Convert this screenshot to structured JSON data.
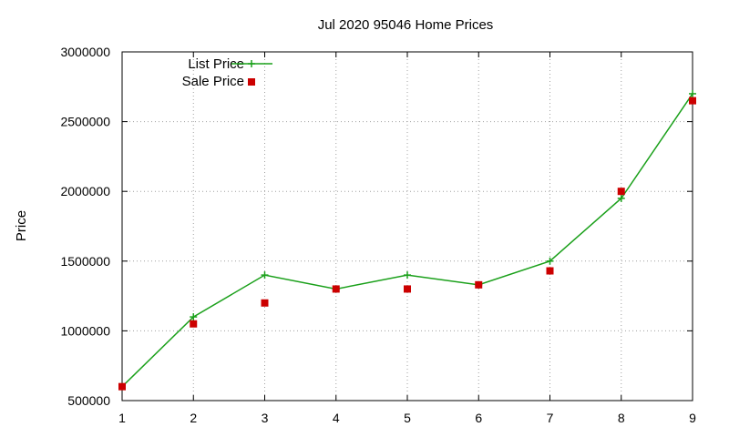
{
  "chart_data": {
    "type": "line",
    "title": "Jul 2020 95046 Home Prices",
    "xlabel": "",
    "ylabel": "Price",
    "x": [
      1,
      2,
      3,
      4,
      5,
      6,
      7,
      8,
      9
    ],
    "xlim": [
      1,
      9
    ],
    "ylim": [
      500000,
      3000000
    ],
    "x_ticks": [
      "1",
      "2",
      "3",
      "4",
      "5",
      "6",
      "7",
      "8",
      "9"
    ],
    "y_ticks": [
      {
        "value": 500000,
        "label": "500000"
      },
      {
        "value": 1000000,
        "label": "1000000"
      },
      {
        "value": 1500000,
        "label": "1500000"
      },
      {
        "value": 2000000,
        "label": "2000000"
      },
      {
        "value": 2500000,
        "label": "2500000"
      },
      {
        "value": 3000000,
        "label": "3000000"
      }
    ],
    "grid": true,
    "legend_position": "top-left",
    "series": [
      {
        "name": "List Price",
        "style": "linespoints",
        "marker": "plus",
        "color": "#1aa01a",
        "values": [
          600000,
          1100000,
          1400000,
          1300000,
          1400000,
          1330000,
          1500000,
          1950000,
          2700000
        ]
      },
      {
        "name": "Sale Price",
        "style": "points",
        "marker": "square",
        "color": "#cc0000",
        "values": [
          600000,
          1050000,
          1200000,
          1300000,
          1300000,
          1330000,
          1430000,
          2000000,
          2650000
        ]
      }
    ]
  }
}
